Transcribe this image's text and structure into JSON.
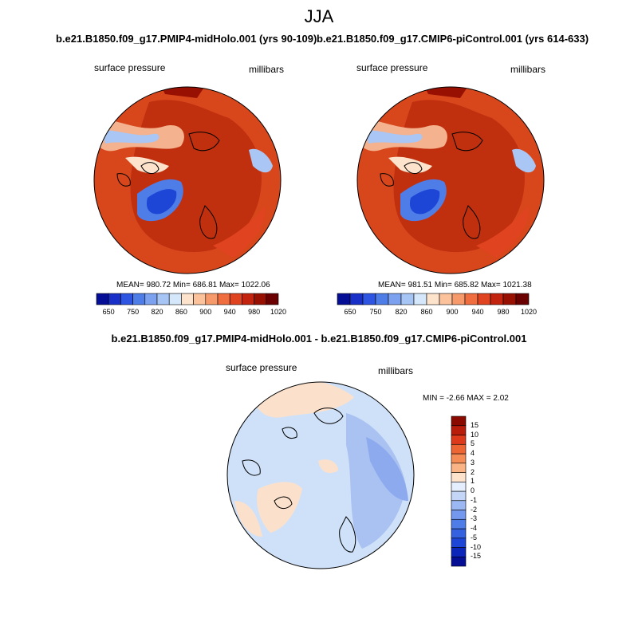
{
  "figure": {
    "season": "JJA",
    "diff_title": "b.e21.B1850.f09_g17.PMIP4-midHolo.001 - b.e21.B1850.f09_g17.CMIP6-piControl.001"
  },
  "panels": [
    {
      "title": "b.e21.B1850.f09_g17.PMIP4-midHolo.001 (yrs 90-109)",
      "variable": "surface pressure",
      "units": "millibars",
      "stats": "MEAN= 980.72  Min= 686.81  Max= 1022.06"
    },
    {
      "title": "b.e21.B1850.f09_g17.CMIP6-piControl.001 (yrs 614-633)",
      "variable": "surface pressure",
      "units": "millibars",
      "stats": "MEAN= 981.51  Min= 685.82  Max= 1021.38"
    }
  ],
  "diff_panel": {
    "variable": "surface pressure",
    "units": "millibars",
    "stats": "MIN =  -2.66 MAX =   2.02"
  },
  "colorbar_abs": {
    "colors": [
      "#050f96",
      "#1830c8",
      "#2e54e2",
      "#4f7de8",
      "#7ca2ef",
      "#a6c4f4",
      "#d5e8fb",
      "#fde2cc",
      "#fbc29c",
      "#f69a6b",
      "#ef6d3f",
      "#e0431f",
      "#c3240f",
      "#981002",
      "#6a0000"
    ],
    "labels": [
      "650",
      "750",
      "820",
      "860",
      "900",
      "940",
      "980",
      "1020"
    ]
  },
  "colorbar_diff": {
    "colors": [
      "#050f96",
      "#0b26b8",
      "#1d45d6",
      "#3563e0",
      "#4f7de8",
      "#7398ee",
      "#9bb8f3",
      "#c3d6f8",
      "#e4eefc",
      "#fde2cc",
      "#f9b384",
      "#f58b55",
      "#ee6534",
      "#dc3a1b",
      "#b81d0b",
      "#8a0a00"
    ],
    "labels": [
      "15",
      "10",
      "5",
      "4",
      "3",
      "2",
      "1",
      "0",
      "-1",
      "-2",
      "-3",
      "-4",
      "-5",
      "-10",
      "-15"
    ]
  },
  "chart_data": [
    {
      "type": "heatmap",
      "title": "b.e21.B1850.f09_g17.PMIP4-midHolo.001 (yrs 90-109)",
      "projection": "polar stereographic (north pole)",
      "variable": "surface pressure",
      "units": "millibars",
      "mean": 980.72,
      "min": 686.81,
      "max": 1022.06,
      "colorbar_levels": [
        650,
        750,
        820,
        860,
        900,
        940,
        980,
        1020
      ]
    },
    {
      "type": "heatmap",
      "title": "b.e21.B1850.f09_g17.CMIP6-piControl.001 (yrs 614-633)",
      "projection": "polar stereographic (north pole)",
      "variable": "surface pressure",
      "units": "millibars",
      "mean": 981.51,
      "min": 685.82,
      "max": 1021.38,
      "colorbar_levels": [
        650,
        750,
        820,
        860,
        900,
        940,
        980,
        1020
      ]
    },
    {
      "type": "heatmap",
      "title": "b.e21.B1850.f09_g17.PMIP4-midHolo.001 - b.e21.B1850.f09_g17.CMIP6-piControl.001",
      "projection": "polar stereographic (north pole)",
      "variable": "surface pressure",
      "units": "millibars",
      "min": -2.66,
      "max": 2.02,
      "colorbar_levels": [
        15,
        10,
        5,
        4,
        3,
        2,
        1,
        0,
        -1,
        -2,
        -3,
        -4,
        -5,
        -10,
        -15
      ]
    }
  ]
}
